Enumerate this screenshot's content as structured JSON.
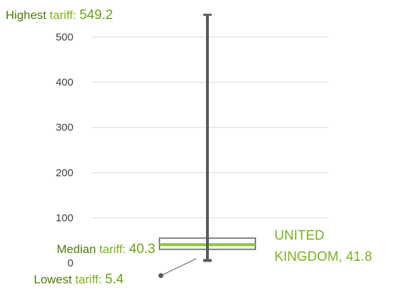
{
  "chart_data": {
    "type": "box",
    "title": "",
    "xlabel": "",
    "ylabel": "",
    "ylim": [
      0,
      549.2
    ],
    "yticks": [
      0,
      100,
      200,
      300,
      400,
      500
    ],
    "grid": true,
    "stats": {
      "min": 5.4,
      "q1": 30,
      "median": 40.3,
      "q3": 55,
      "max": 549.2
    },
    "highlight": {
      "name": "UNITED KINGDOM",
      "value": 41.8
    },
    "annotations": {
      "highest": {
        "label": "Highest",
        "suffix": " tariff: ",
        "value": "549.2"
      },
      "median": {
        "label": "Median",
        "suffix": " tariff: ",
        "value": "40.3"
      },
      "lowest": {
        "label": "Lowest",
        "suffix": " tariff: ",
        "value": "5.4"
      },
      "highlight_line1": "UNITED",
      "highlight_line2": "KINGDOM, 41.8"
    },
    "colors": {
      "whisker": "#595959",
      "box_stroke": "#7f7f7f",
      "box_fill": "#f2f2f2",
      "median_line": "#8cc63f",
      "grid": "#d9d9d9",
      "annotation_label": "#7ab317",
      "annotation_value": "#6aa40f",
      "highlight_text": "#7ab317"
    }
  }
}
